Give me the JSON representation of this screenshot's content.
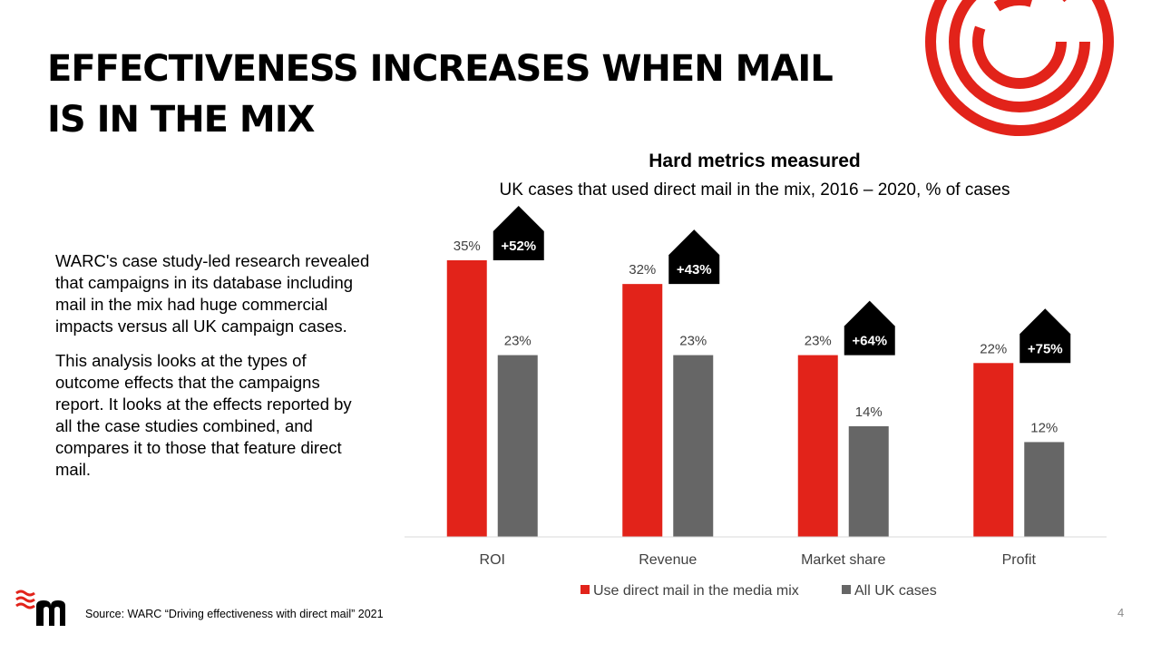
{
  "slide": {
    "title": "EFFECTIVENESS INCREASES WHEN MAIL IS IN THE MIX",
    "body_paragraphs": [
      "WARC's case study-led research revealed that campaigns in its database including mail in the mix had huge commercial impacts versus all UK campaign cases.",
      "This analysis looks at the types of outcome effects that the campaigns report. It looks at the effects reported by all the case studies combined, and compares it to those that feature direct mail."
    ],
    "source": "Source: WARC “Driving effectiveness with direct mail” 2021",
    "page_number": "4",
    "accent_color": "#e2231a",
    "logos": [
      "concentric-circle-logo",
      "brand-m-logo"
    ]
  },
  "chart_data": {
    "type": "bar",
    "title": "Hard metrics measured",
    "subtitle": "UK cases that used direct mail in the mix, 2016 – 2020, % of cases",
    "categories": [
      "ROI",
      "Revenue",
      "Market share",
      "Profit"
    ],
    "series": [
      {
        "name": "Use direct mail in the media mix",
        "color": "#e2231a",
        "values": [
          35,
          32,
          23,
          22
        ],
        "labels": [
          "35%",
          "32%",
          "23%",
          "22%"
        ]
      },
      {
        "name": "All UK cases",
        "color": "#666666",
        "values": [
          23,
          23,
          14,
          12
        ],
        "labels": [
          "23%",
          "23%",
          "14%",
          "12%"
        ]
      }
    ],
    "uplift_labels": [
      "+52%",
      "+43%",
      "+64%",
      "+75%"
    ],
    "ylim": [
      0,
      35
    ],
    "grid": false,
    "legend_position": "bottom"
  }
}
